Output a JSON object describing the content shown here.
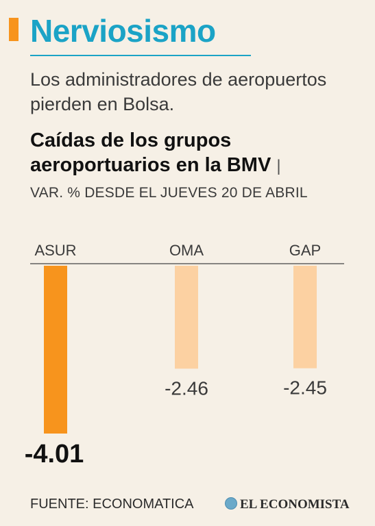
{
  "header": {
    "title": "Nerviosismo",
    "subtitle": "Los administradores de aeropuertos pierden en Bolsa."
  },
  "chart_header": {
    "title": "Caídas de los grupos aeroportuarios en la BMV",
    "separator": "|",
    "subtitle": "VAR. % DESDE EL JUEVES 20 DE ABRIL"
  },
  "chart_data": {
    "type": "bar",
    "title": "Caídas de los grupos aeroportuarios en la BMV",
    "subtitle": "VAR. % DESDE EL JUEVES 20 DE ABRIL",
    "categories": [
      "ASUR",
      "OMA",
      "GAP"
    ],
    "values": [
      -4.01,
      -2.46,
      -2.45
    ],
    "value_labels": [
      "-4.01",
      "-2.46",
      "-2.45"
    ],
    "ylim": [
      -4.01,
      0
    ],
    "colors": {
      "highlight": "#f7941d",
      "muted": "#fcd1a2",
      "axis": "#444444"
    },
    "highlight_index": 0
  },
  "footer": {
    "source": "FUENTE: ECONOMATICA",
    "brand": "EL ECONOMISTA",
    "brand_icon": "globe-icon"
  }
}
